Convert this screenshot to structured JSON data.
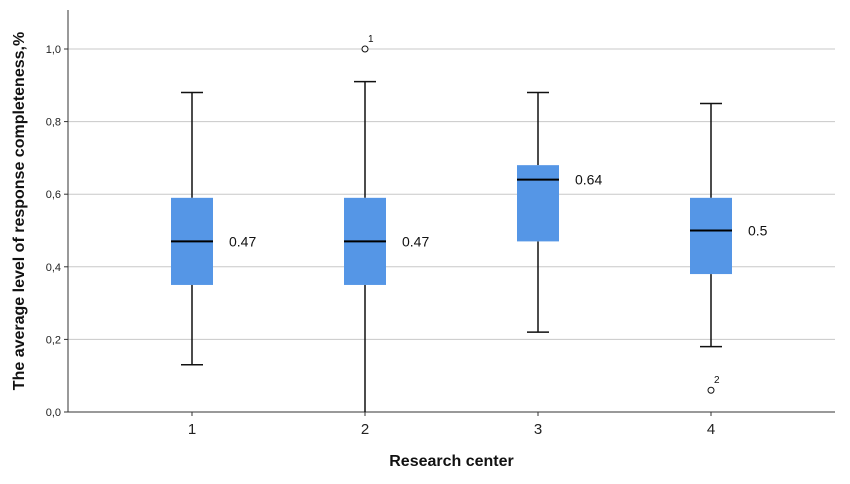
{
  "chart_data": {
    "type": "boxplot",
    "xlabel": "Research center",
    "ylabel": "The average level of response completeness,%",
    "ylim": [
      0,
      1.1
    ],
    "yticks": [
      {
        "value": 0.0,
        "label": "0,0"
      },
      {
        "value": 0.2,
        "label": "0,2"
      },
      {
        "value": 0.4,
        "label": "0,4"
      },
      {
        "value": 0.6,
        "label": "0,6"
      },
      {
        "value": 0.8,
        "label": "0,8"
      },
      {
        "value": 1.0,
        "label": "1,0"
      }
    ],
    "grid": true,
    "box_color": "#5596e6",
    "categories": [
      "1",
      "2",
      "3",
      "4"
    ],
    "boxes": [
      {
        "category": "1",
        "min": 0.13,
        "q1": 0.35,
        "median": 0.47,
        "q3": 0.59,
        "max": 0.88,
        "median_label": "0.47",
        "outliers": []
      },
      {
        "category": "2",
        "min": 0.0,
        "q1": 0.35,
        "median": 0.47,
        "q3": 0.59,
        "max": 0.91,
        "median_label": "0.47",
        "outliers": [
          {
            "value": 1.0,
            "label": "1"
          }
        ]
      },
      {
        "category": "3",
        "min": 0.22,
        "q1": 0.47,
        "median": 0.64,
        "q3": 0.68,
        "max": 0.88,
        "median_label": "0.64",
        "outliers": []
      },
      {
        "category": "4",
        "min": 0.18,
        "q1": 0.38,
        "median": 0.5,
        "q3": 0.59,
        "max": 0.85,
        "median_label": "0.5",
        "outliers": [
          {
            "value": 0.06,
            "label": "2"
          }
        ]
      }
    ]
  }
}
